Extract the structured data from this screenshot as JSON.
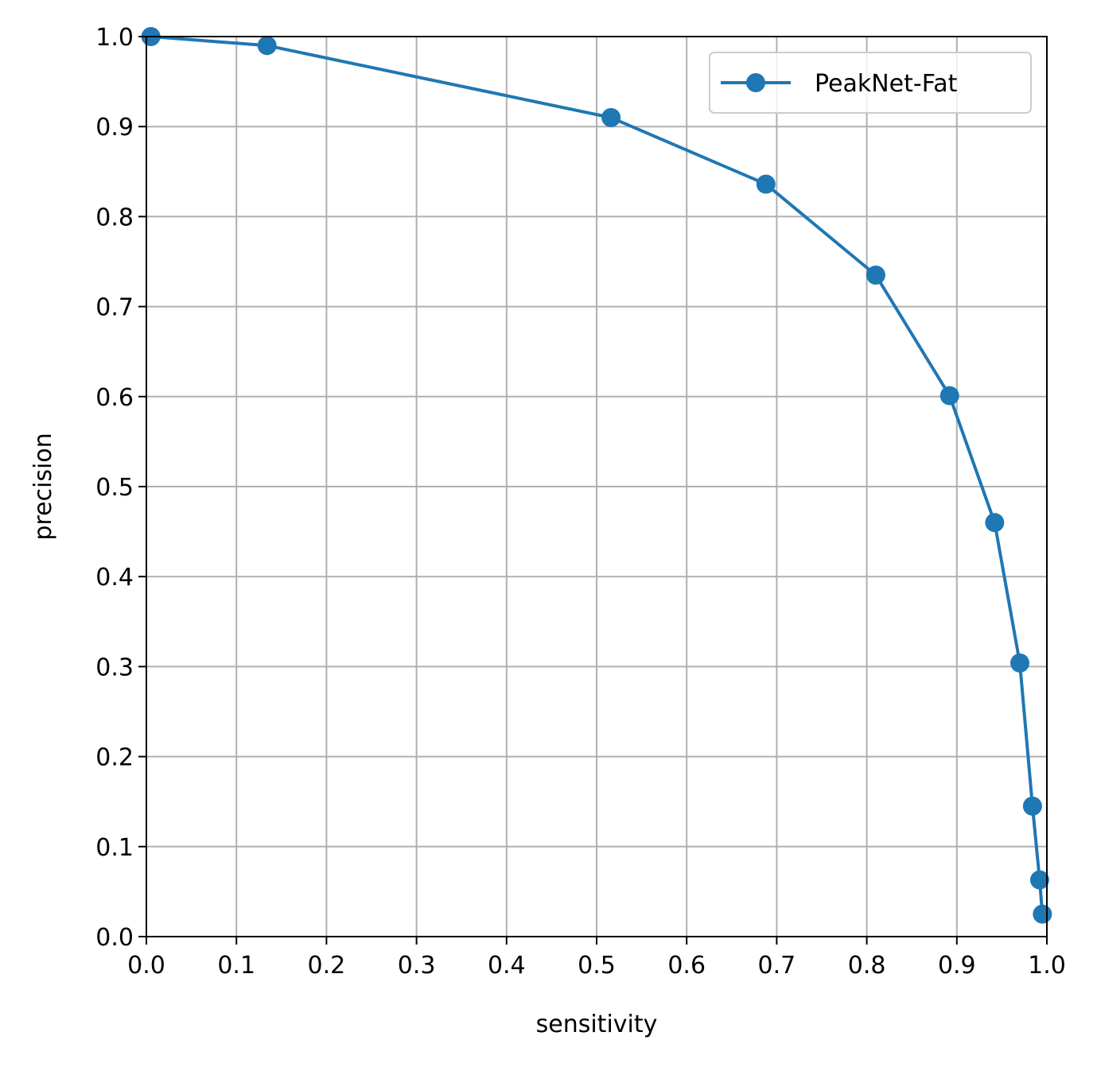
{
  "chart_data": {
    "type": "line",
    "title": "",
    "xlabel": "sensitivity",
    "ylabel": "precision",
    "xlim": [
      0.0,
      1.0
    ],
    "ylim": [
      0.0,
      1.0
    ],
    "xticks": [
      "0.0",
      "0.1",
      "0.2",
      "0.3",
      "0.4",
      "0.5",
      "0.6",
      "0.7",
      "0.8",
      "0.9",
      "1.0"
    ],
    "yticks": [
      "0.0",
      "0.1",
      "0.2",
      "0.3",
      "0.4",
      "0.5",
      "0.6",
      "0.7",
      "0.8",
      "0.9",
      "1.0"
    ],
    "grid": true,
    "legend_position": "top-right",
    "series": [
      {
        "name": "PeakNet-Fat",
        "color": "#1f77b4",
        "marker": "circle",
        "x": [
          0.005,
          0.134,
          0.516,
          0.688,
          0.81,
          0.892,
          0.942,
          0.97,
          0.984,
          0.992,
          0.995
        ],
        "y": [
          1.0,
          0.99,
          0.91,
          0.836,
          0.735,
          0.601,
          0.46,
          0.304,
          0.145,
          0.063,
          0.025
        ]
      }
    ]
  }
}
